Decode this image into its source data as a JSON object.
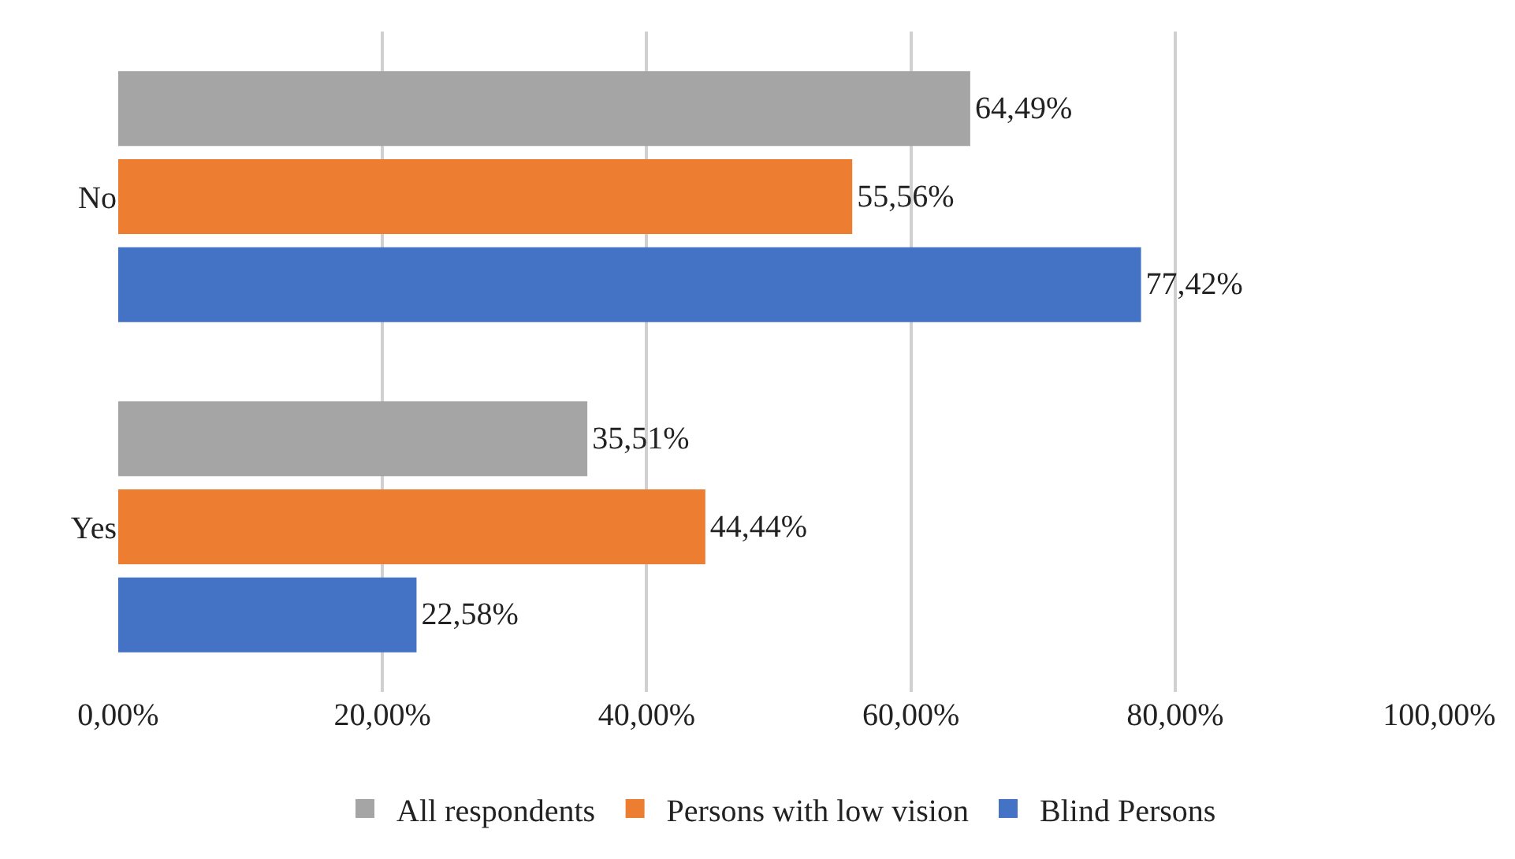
{
  "chart_data": {
    "type": "bar",
    "orientation": "horizontal",
    "categories": [
      "No",
      "Yes"
    ],
    "series": [
      {
        "name": "All respondents",
        "color": "#a5a5a5",
        "values": [
          64.49,
          35.51
        ],
        "value_labels": [
          "64,49%",
          "35,51%"
        ]
      },
      {
        "name": "Persons with low vision",
        "color": "#ed7d31",
        "values": [
          55.56,
          44.44
        ],
        "value_labels": [
          "55,56%",
          "44,44%"
        ]
      },
      {
        "name": "Blind Persons",
        "color": "#4472c4",
        "values": [
          77.42,
          22.58
        ],
        "value_labels": [
          "77,42%",
          "22,58%"
        ]
      }
    ],
    "xlim": [
      0,
      100
    ],
    "xticks": [
      {
        "value": 0,
        "label": "0,00%"
      },
      {
        "value": 20,
        "label": "20,00%"
      },
      {
        "value": 40,
        "label": "40,00%"
      },
      {
        "value": 60,
        "label": "60,00%"
      },
      {
        "value": 80,
        "label": "80,00%"
      },
      {
        "value": 100,
        "label": "100,00%"
      }
    ],
    "grid": "x",
    "legend": "bottom"
  }
}
